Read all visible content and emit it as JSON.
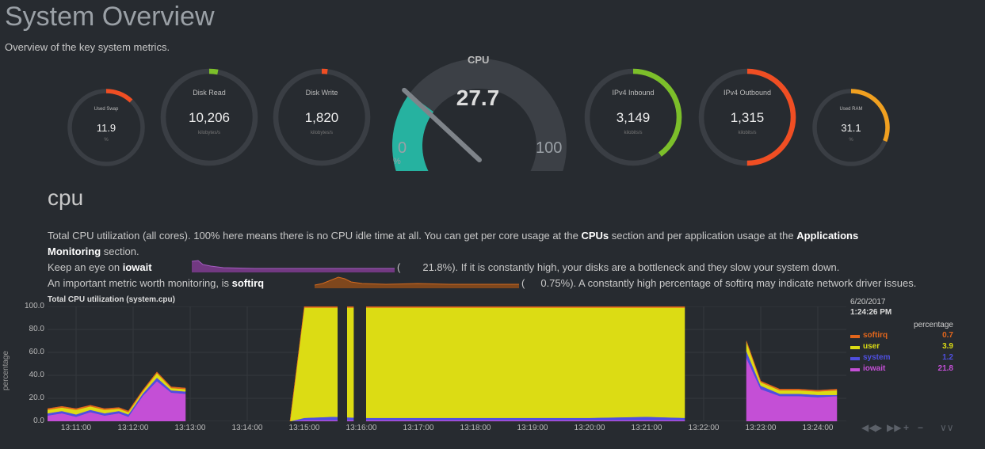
{
  "page": {
    "title": "System Overview",
    "subtitle": "Overview of the key system metrics."
  },
  "gauges": [
    {
      "id": "used-swap",
      "title": "Used Swap",
      "value": "11.9",
      "unit": "%",
      "percent": 0.12,
      "color": "#f04e23"
    },
    {
      "id": "disk-read",
      "title": "Disk Read",
      "value": "10,206",
      "unit": "kilobytes/s",
      "percent": 0.03,
      "color": "#7cbf2a"
    },
    {
      "id": "disk-write",
      "title": "Disk Write",
      "value": "1,820",
      "unit": "kilobytes/s",
      "percent": 0.02,
      "color": "#f04e23"
    },
    {
      "id": "ipv4-inbound",
      "title": "IPv4 Inbound",
      "value": "3,149",
      "unit": "kilobits/s",
      "percent": 0.4,
      "color": "#7cbf2a"
    },
    {
      "id": "ipv4-outbound",
      "title": "IPv4 Outbound",
      "value": "1,315",
      "unit": "kilobits/s",
      "percent": 0.5,
      "color": "#f04e23"
    },
    {
      "id": "used-ram",
      "title": "Used RAM",
      "value": "31.1",
      "unit": "%",
      "percent": 0.31,
      "color": "#f0a020"
    }
  ],
  "cpu_gauge": {
    "label": "CPU",
    "value": "27.7",
    "min": "0",
    "max": "100",
    "unit": "%",
    "percent": 0.277,
    "color": "#26b2a0"
  },
  "section": {
    "title": "cpu",
    "line1a": "Total CPU utilization (all cores). 100% here means there is no CPU idle time at all. You can get per core usage at the ",
    "line1_link1": "CPUs",
    "line1b": " section and per application usage at the ",
    "line1_link2": "Applications",
    "line2_link": "Monitoring",
    "line2b": " section.",
    "line3a": "Keep an eye on ",
    "line3_bold": "iowait",
    "line3_paren": "(",
    "line3_val": "21.8%",
    "line3b": "). If it is constantly high, your disks are a bottleneck and they slow your system down.",
    "line4a": "An important metric worth monitoring, is ",
    "line4_bold": "softirq",
    "line4_paren": "(",
    "line4_val": "0.75%",
    "line4b": "). A constantly high percentage of softirq may indicate network driver issues."
  },
  "chart": {
    "title": "Total CPU utilization (system.cpu)",
    "ylabel": "percentage",
    "legend_date": "6/20/2017",
    "legend_time": "1:24:26 PM",
    "legend_unit": "percentage",
    "legend": [
      {
        "name": "softirq",
        "value": "0.7",
        "color": "#e2661c"
      },
      {
        "name": "user",
        "value": "3.9",
        "color": "#dcdc14"
      },
      {
        "name": "system",
        "value": "1.2",
        "color": "#4f4fe0"
      },
      {
        "name": "iowait",
        "value": "21.8",
        "color": "#c44fd6"
      }
    ]
  },
  "chart_data": {
    "type": "area",
    "title": "Total CPU utilization (system.cpu)",
    "ylabel": "percentage",
    "ylim": [
      0,
      100
    ],
    "yticks": [
      "100.0",
      "80.0",
      "60.0",
      "40.0",
      "20.0",
      "0.0"
    ],
    "xticks": [
      "13:11:00",
      "13:12:00",
      "13:13:00",
      "13:14:00",
      "13:15:00",
      "13:16:00",
      "13:17:00",
      "13:18:00",
      "13:19:00",
      "13:20:00",
      "13:21:00",
      "13:22:00",
      "13:23:00",
      "13:24:00"
    ],
    "x": [
      "13:10:30",
      "13:10:45",
      "13:11:00",
      "13:11:15",
      "13:11:30",
      "13:11:45",
      "13:11:55",
      "13:12:10",
      "13:12:25",
      "13:12:40",
      "13:12:55",
      "13:14:45",
      "13:15:00",
      "13:15:30",
      "13:16:00",
      "13:17:00",
      "13:18:00",
      "13:19:00",
      "13:20:00",
      "13:21:00",
      "13:21:40",
      "13:22:45",
      "13:23:00",
      "13:23:20",
      "13:23:40",
      "13:24:00",
      "13:24:20"
    ],
    "series": [
      {
        "name": "iowait",
        "values": [
          5,
          7,
          4,
          8,
          5,
          7,
          4,
          22,
          35,
          25,
          24,
          0,
          1,
          1,
          1,
          1,
          1,
          1,
          1,
          1,
          1,
          55,
          28,
          22,
          22,
          21,
          22
        ]
      },
      {
        "name": "system",
        "values": [
          2,
          2,
          2,
          2,
          2,
          2,
          2,
          2,
          3,
          2,
          2,
          0,
          2,
          3,
          2,
          2,
          2,
          2,
          2,
          3,
          2,
          6,
          3,
          2,
          2,
          2,
          1
        ]
      },
      {
        "name": "user",
        "values": [
          3,
          3,
          4,
          3,
          3,
          2,
          2,
          2,
          4,
          2,
          2,
          0,
          96,
          95,
          96,
          96,
          96,
          96,
          96,
          95,
          96,
          8,
          3,
          3,
          3,
          3,
          4
        ]
      },
      {
        "name": "softirq",
        "values": [
          1,
          1,
          1,
          1,
          1,
          1,
          1,
          1,
          1,
          1,
          1,
          0,
          1,
          1,
          1,
          1,
          1,
          1,
          1,
          1,
          1,
          1,
          1,
          1,
          1,
          1,
          1
        ]
      }
    ]
  }
}
